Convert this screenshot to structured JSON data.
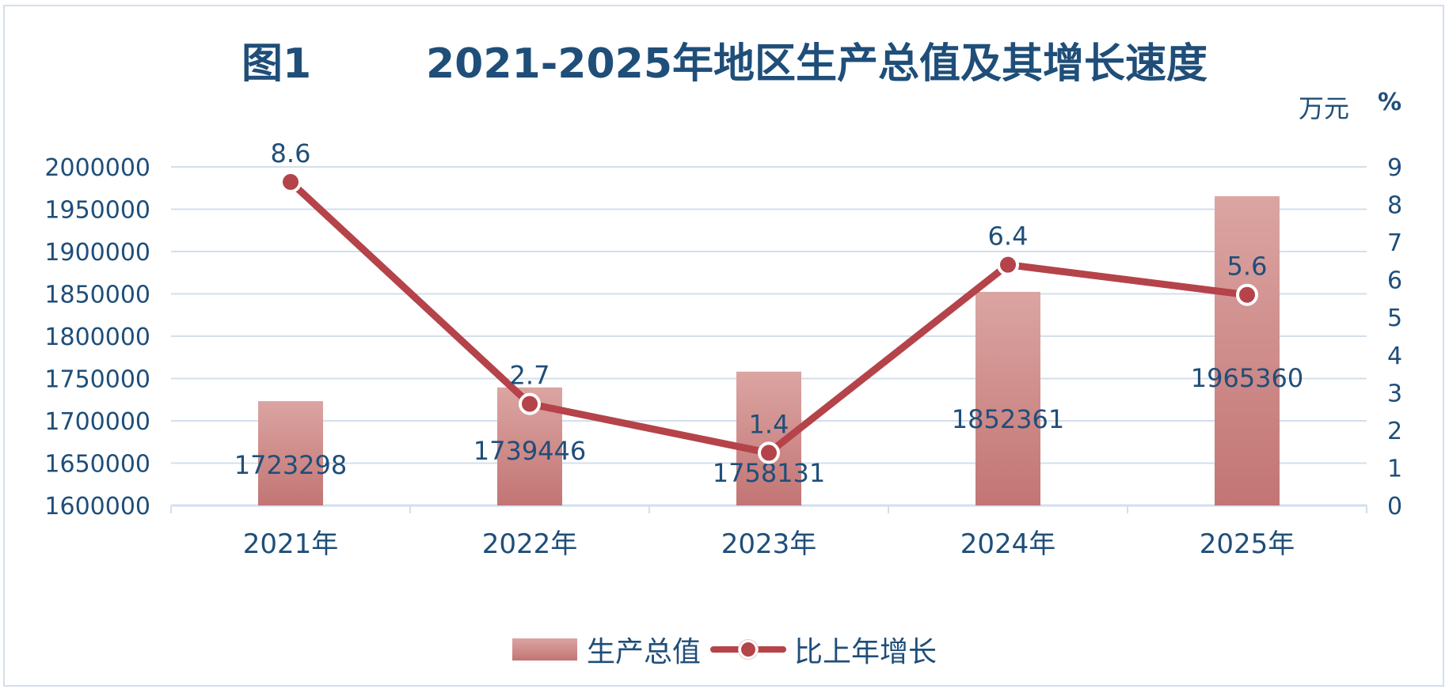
{
  "title": "图1        2021-2025年地区生产总值及其增长速度",
  "unit_left": "万元",
  "unit_right": "%",
  "legend": {
    "bar_label": "生产总值",
    "line_label": "比上年增长"
  },
  "colors": {
    "text": "#1f4e79",
    "bar_top": "#dba5a2",
    "bar_bottom": "#c27574",
    "line": "#b5434a",
    "grid": "#d3dfec"
  },
  "chart_data": {
    "type": "bar",
    "categories": [
      "2021年",
      "2022年",
      "2023年",
      "2024年",
      "2025年"
    ],
    "series": [
      {
        "name": "生产总值",
        "type": "bar",
        "axis": "left",
        "values": [
          1723298,
          1739446,
          1758131,
          1852361,
          1965360
        ]
      },
      {
        "name": "比上年增长",
        "type": "line",
        "axis": "right",
        "values": [
          8.6,
          2.7,
          1.4,
          6.4,
          5.6
        ]
      }
    ],
    "ylim_left": [
      1600000,
      2000000
    ],
    "yticks_left": [
      "1600000",
      "1650000",
      "1700000",
      "1750000",
      "1800000",
      "1850000",
      "1900000",
      "1950000",
      "2000000"
    ],
    "ylim_right": [
      0,
      9
    ],
    "yticks_right": [
      "0",
      "1",
      "2",
      "3",
      "4",
      "5",
      "6",
      "7",
      "8",
      "9"
    ],
    "grid": true,
    "legend_position": "bottom"
  }
}
